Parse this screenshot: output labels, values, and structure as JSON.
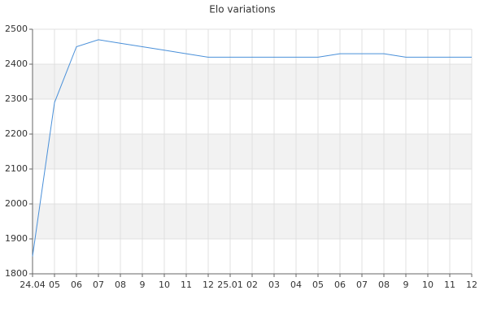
{
  "chart_data": {
    "type": "line",
    "title": "Elo variations",
    "categories": [
      "24.04",
      "05",
      "06",
      "07",
      "08",
      "9",
      "10",
      "11",
      "12",
      "25.01",
      "02",
      "03",
      "04",
      "05",
      "06",
      "07",
      "08",
      "9",
      "10",
      "11",
      "12"
    ],
    "values": [
      1850,
      2290,
      2450,
      2470,
      2460,
      2450,
      2440,
      2430,
      2420,
      2420,
      2420,
      2420,
      2420,
      2420,
      2430,
      2430,
      2430,
      2420,
      2420,
      2420,
      2420
    ],
    "color": "#4a90d9",
    "ylim": [
      1800,
      2500
    ],
    "yticks": [
      1800,
      1900,
      2000,
      2100,
      2200,
      2300,
      2400,
      2500
    ],
    "grid": true,
    "alternate_bands": true
  }
}
